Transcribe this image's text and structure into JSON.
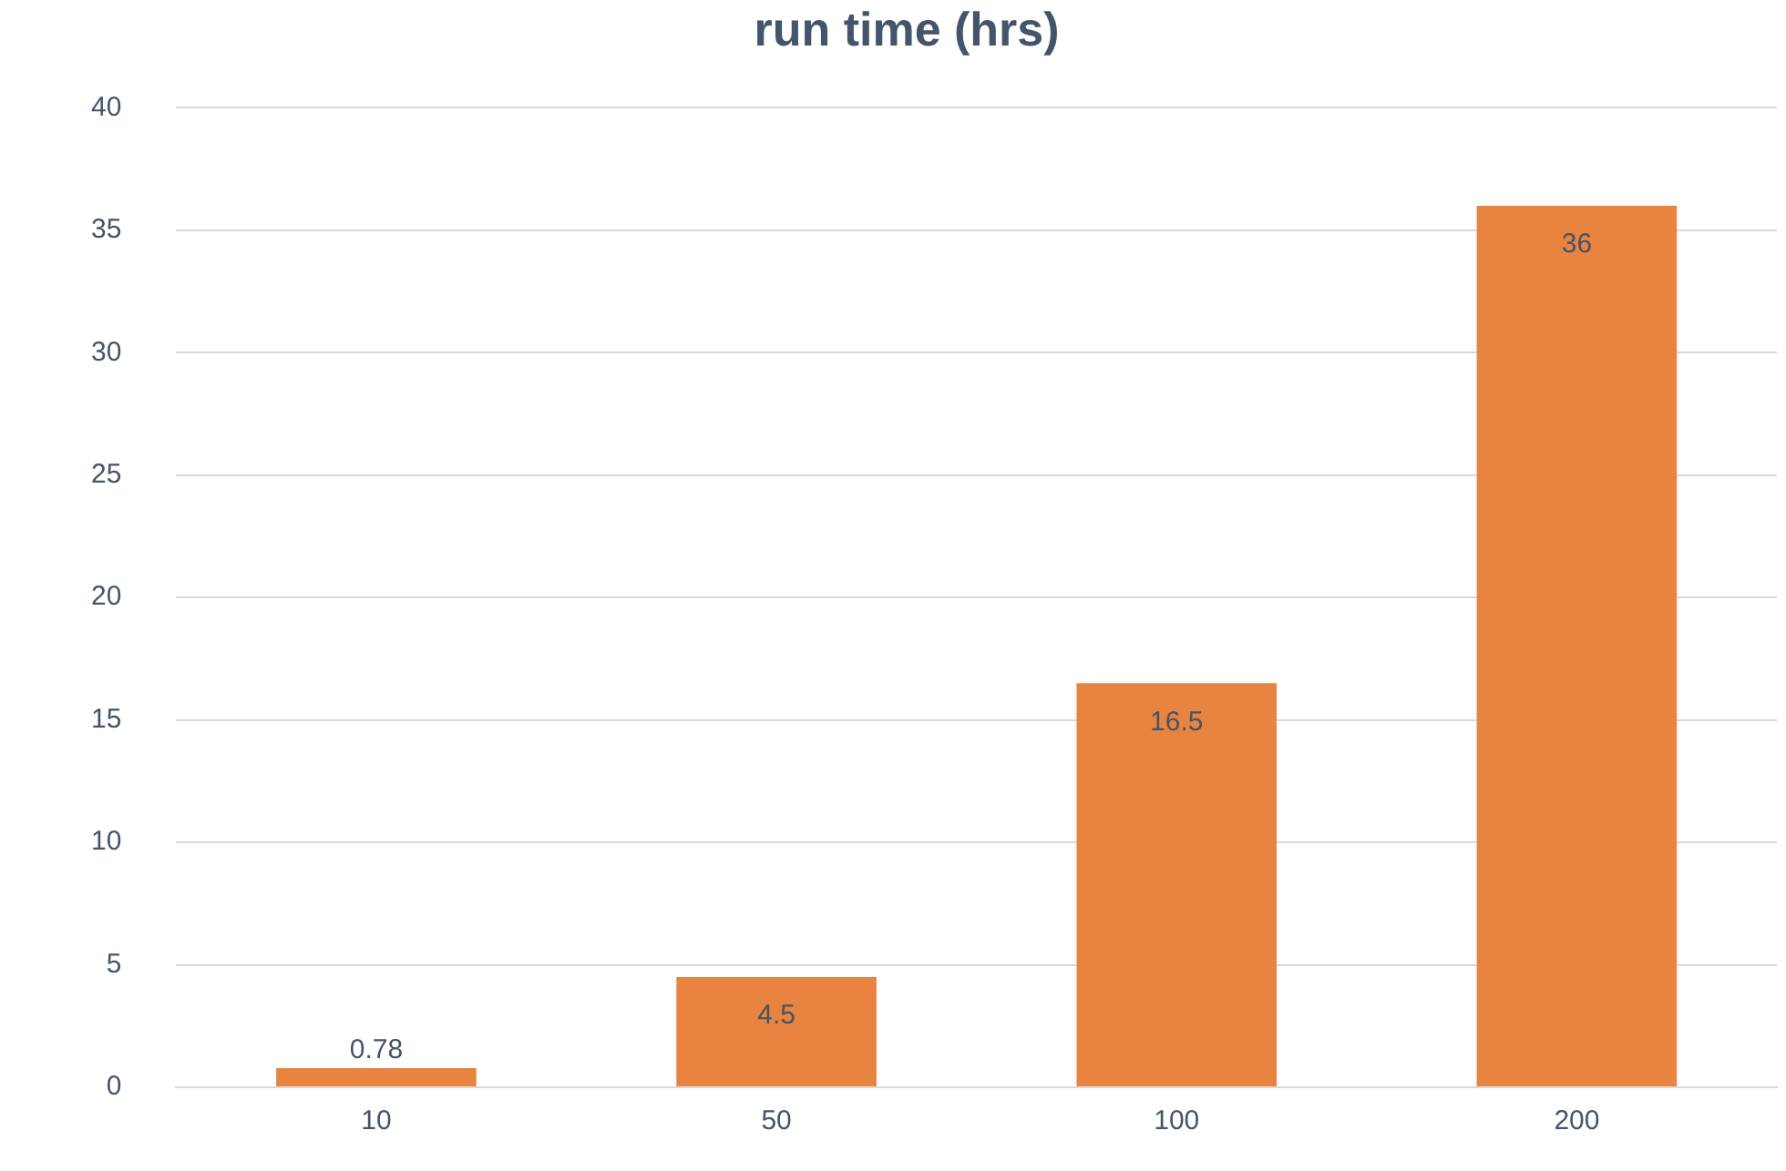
{
  "chart_data": {
    "type": "bar",
    "title": "run time (hrs)",
    "categories": [
      "10",
      "50",
      "100",
      "200"
    ],
    "values": [
      0.78,
      4.5,
      16.5,
      36
    ],
    "color": "#e8843f",
    "ylim": [
      0,
      40
    ],
    "yticks": [
      0,
      5,
      10,
      15,
      20,
      25,
      30,
      35,
      40
    ],
    "grid": "y",
    "data_labels": true,
    "legend": false
  }
}
